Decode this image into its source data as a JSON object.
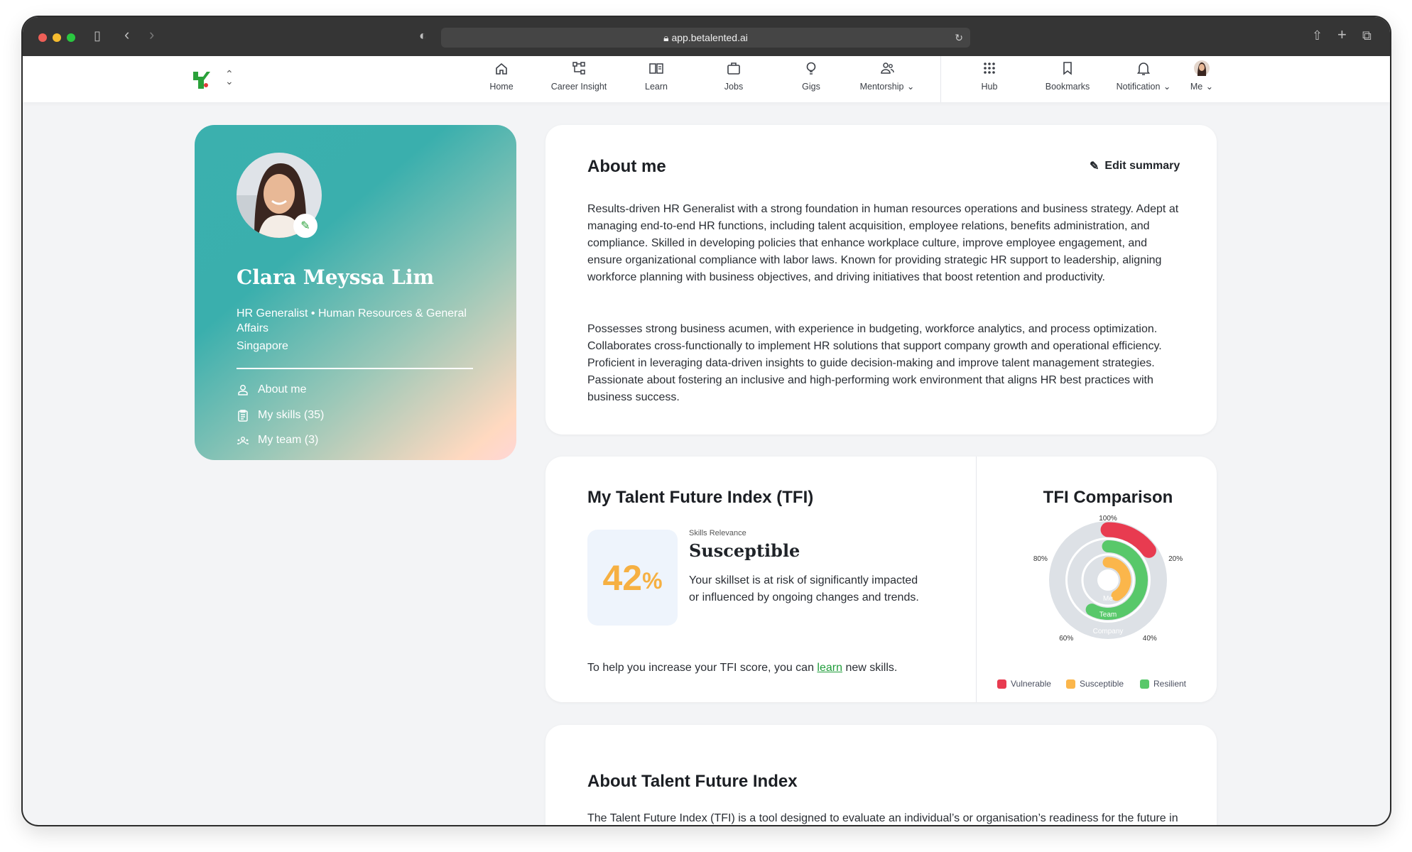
{
  "browser": {
    "url": "app.betalented.ai"
  },
  "nav": {
    "items": [
      {
        "label": "Home",
        "icon": "home-icon"
      },
      {
        "label": "Career Insight",
        "icon": "career-insight-icon"
      },
      {
        "label": "Learn",
        "icon": "book-icon"
      },
      {
        "label": "Jobs",
        "icon": "briefcase-icon"
      },
      {
        "label": "Gigs",
        "icon": "lightbulb-icon"
      },
      {
        "label": "Mentorship",
        "icon": "people-icon",
        "dropdown": true
      },
      {
        "label": "Hub",
        "icon": "grid-icon"
      },
      {
        "label": "Bookmarks",
        "icon": "bookmark-icon"
      },
      {
        "label": "Notification",
        "icon": "bell-icon",
        "dropdown": true
      },
      {
        "label": "Me",
        "icon": "avatar",
        "dropdown": true
      }
    ],
    "chevron": "⌄"
  },
  "profile": {
    "name": "Clara Meyssa Lim",
    "title": "HR Generalist • Human Resources & General Affairs",
    "location": "Singapore",
    "menu": [
      {
        "label": "About me",
        "icon": "user-icon"
      },
      {
        "label": "My skills (35)",
        "icon": "clipboard-icon"
      },
      {
        "label": "My team (3)",
        "icon": "team-icon"
      }
    ]
  },
  "about": {
    "title": "About me",
    "edit_label": "Edit summary",
    "paragraphs": [
      "Results-driven HR Generalist with a strong foundation in human resources operations and business strategy. Adept at managing end-to-end HR functions, including talent acquisition, employee relations, benefits administration, and compliance. Skilled in developing policies that enhance workplace culture, improve employee engagement, and ensure organizational compliance with labor laws. Known for providing strategic HR support to leadership, aligning workforce planning with business objectives, and driving initiatives that boost retention and productivity.",
      "Possesses strong business acumen, with experience in budgeting, workforce analytics, and process optimization. Collaborates cross-functionally to implement HR solutions that support company growth and operational efficiency. Proficient in leveraging data-driven insights to guide decision-making and improve talent management strategies. Passionate about fostering an inclusive and high-performing work environment that aligns HR best practices with business success."
    ]
  },
  "tfi": {
    "title": "My Talent Future Index (TFI)",
    "score": "42",
    "score_unit": "%",
    "category_label": "Skills Relevance",
    "status": "Susceptible",
    "description": "Your skillset is at risk of significantly impacted or influenced by ongoing changes and trends.",
    "help_prefix": "To help you increase your TFI score, you can ",
    "help_link": "learn",
    "help_suffix": " new skills.",
    "colors": {
      "score": "#f6b042",
      "link": "#1f9d3a"
    }
  },
  "chart_data": {
    "type": "radial-bar",
    "title": "TFI Comparison",
    "ticks": [
      "100%",
      "20%",
      "40%",
      "60%",
      "80%"
    ],
    "tick_values": [
      0,
      20,
      40,
      60,
      80
    ],
    "range": [
      0,
      100
    ],
    "series": [
      {
        "name": "Company",
        "value": 15,
        "category": "Vulnerable"
      },
      {
        "name": "Team",
        "value": 58,
        "category": "Resilient"
      },
      {
        "name": "Me",
        "value": 42,
        "category": "Susceptible"
      }
    ],
    "legend": [
      {
        "label": "Vulnerable",
        "color": "#e83b50"
      },
      {
        "label": "Susceptible",
        "color": "#fbb64b"
      },
      {
        "label": "Resilient",
        "color": "#58c86a"
      }
    ],
    "legend_position": "bottom"
  },
  "about_tfi": {
    "title": "About Talent Future Index",
    "text": "The Talent Future Index (TFI) is a tool designed to evaluate an individual’s or organisation’s readiness for the future in terms of human capital. It focuses on two key criteria: whether the individual has sufficient in-"
  }
}
